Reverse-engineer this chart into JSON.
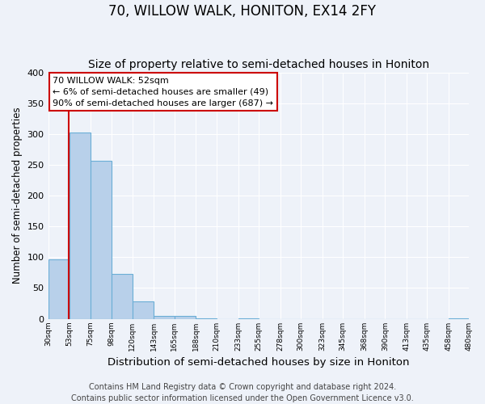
{
  "title": "70, WILLOW WALK, HONITON, EX14 2FY",
  "subtitle": "Size of property relative to semi-detached houses in Honiton",
  "xlabel": "Distribution of semi-detached houses by size in Honiton",
  "ylabel": "Number of semi-detached properties",
  "bin_edges": [
    30,
    53,
    75,
    98,
    120,
    143,
    165,
    188,
    210,
    233,
    255,
    278,
    300,
    323,
    345,
    368,
    390,
    413,
    435,
    458,
    480
  ],
  "bar_heights": [
    97,
    303,
    256,
    73,
    28,
    5,
    5,
    1,
    0,
    1,
    0,
    0,
    0,
    0,
    0,
    0,
    0,
    0,
    0,
    1
  ],
  "bar_color": "#b8d0ea",
  "bar_edge_color": "#6baed6",
  "property_size": 52,
  "property_line_color": "#cc0000",
  "annotation_text": "70 WILLOW WALK: 52sqm\n← 6% of semi-detached houses are smaller (49)\n90% of semi-detached houses are larger (687) →",
  "annotation_box_color": "#ffffff",
  "annotation_box_edge_color": "#cc0000",
  "ylim": [
    0,
    400
  ],
  "yticks": [
    0,
    50,
    100,
    150,
    200,
    250,
    300,
    350,
    400
  ],
  "footer_text": "Contains HM Land Registry data © Crown copyright and database right 2024.\nContains public sector information licensed under the Open Government Licence v3.0.",
  "background_color": "#eef2f9",
  "grid_color": "#ffffff",
  "title_fontsize": 12,
  "subtitle_fontsize": 10,
  "xlabel_fontsize": 9.5,
  "ylabel_fontsize": 8.5,
  "footer_fontsize": 7,
  "annotation_fontsize": 8
}
